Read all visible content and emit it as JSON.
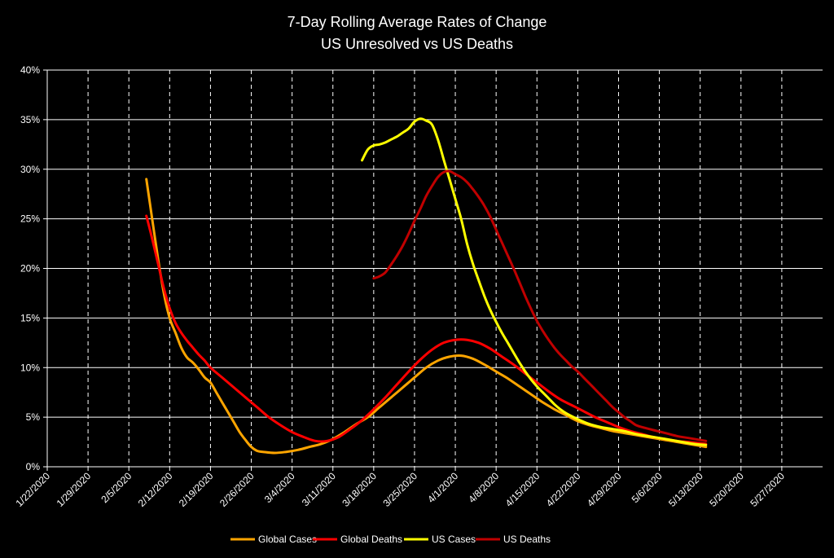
{
  "chart_data": {
    "type": "line",
    "title": "7-Day Rolling Average Rates of Change",
    "subtitle": "US Unresolved vs US Deaths",
    "xlabel": "",
    "ylabel": "",
    "x_ticks": [
      "1/22/2020",
      "1/29/2020",
      "2/5/2020",
      "2/12/2020",
      "2/19/2020",
      "2/26/2020",
      "3/4/2020",
      "3/11/2020",
      "3/18/2020",
      "3/25/2020",
      "4/1/2020",
      "4/8/2020",
      "4/15/2020",
      "4/22/2020",
      "4/29/2020",
      "5/6/2020",
      "5/13/2020",
      "5/20/2020",
      "5/27/2020"
    ],
    "y_ticks": [
      "0%",
      "5%",
      "10%",
      "15%",
      "20%",
      "25%",
      "30%",
      "35%",
      "40%"
    ],
    "ylim": [
      0,
      40
    ],
    "xlim": [
      "1/22/2020",
      "6/3/2020"
    ],
    "grid": {
      "horizontal": "solid",
      "vertical": "dashed"
    },
    "legend_position": "bottom",
    "background": "#000000",
    "series": [
      {
        "name": "Global Cases",
        "color": "#ffa500",
        "points": [
          [
            "2/8/2020",
            29.0
          ],
          [
            "2/9/2020",
            25.0
          ],
          [
            "2/10/2020",
            21.0
          ],
          [
            "2/11/2020",
            17.5
          ],
          [
            "2/12/2020",
            15.0
          ],
          [
            "2/13/2020",
            13.5
          ],
          [
            "2/14/2020",
            12.0
          ],
          [
            "2/15/2020",
            11.0
          ],
          [
            "2/16/2020",
            10.5
          ],
          [
            "2/17/2020",
            9.8
          ],
          [
            "2/18/2020",
            9.0
          ],
          [
            "2/19/2020",
            8.5
          ],
          [
            "2/20/2020",
            7.5
          ],
          [
            "2/21/2020",
            6.5
          ],
          [
            "2/22/2020",
            5.5
          ],
          [
            "2/23/2020",
            4.5
          ],
          [
            "2/24/2020",
            3.5
          ],
          [
            "2/25/2020",
            2.7
          ],
          [
            "2/26/2020",
            2.0
          ],
          [
            "2/27/2020",
            1.6
          ],
          [
            "2/28/2020",
            1.5
          ],
          [
            "3/1/2020",
            1.4
          ],
          [
            "3/3/2020",
            1.5
          ],
          [
            "3/5/2020",
            1.7
          ],
          [
            "3/7/2020",
            2.0
          ],
          [
            "3/9/2020",
            2.3
          ],
          [
            "3/11/2020",
            2.8
          ],
          [
            "3/13/2020",
            3.5
          ],
          [
            "3/15/2020",
            4.3
          ],
          [
            "3/17/2020",
            5.0
          ],
          [
            "3/19/2020",
            6.0
          ],
          [
            "3/21/2020",
            7.0
          ],
          [
            "3/23/2020",
            8.0
          ],
          [
            "3/25/2020",
            9.0
          ],
          [
            "3/27/2020",
            10.0
          ],
          [
            "3/29/2020",
            10.7
          ],
          [
            "3/31/2020",
            11.1
          ],
          [
            "4/2/2020",
            11.2
          ],
          [
            "4/4/2020",
            10.9
          ],
          [
            "4/6/2020",
            10.3
          ],
          [
            "4/8/2020",
            9.6
          ],
          [
            "4/10/2020",
            8.9
          ],
          [
            "4/12/2020",
            8.1
          ],
          [
            "4/14/2020",
            7.3
          ],
          [
            "4/16/2020",
            6.5
          ],
          [
            "4/18/2020",
            5.8
          ],
          [
            "4/20/2020",
            5.2
          ],
          [
            "4/22/2020",
            4.6
          ],
          [
            "4/24/2020",
            4.2
          ],
          [
            "4/26/2020",
            3.9
          ],
          [
            "4/28/2020",
            3.6
          ],
          [
            "4/30/2020",
            3.4
          ],
          [
            "5/2/2020",
            3.2
          ],
          [
            "5/4/2020",
            3.0
          ],
          [
            "5/6/2020",
            2.8
          ],
          [
            "5/8/2020",
            2.6
          ],
          [
            "5/10/2020",
            2.4
          ],
          [
            "5/12/2020",
            2.2
          ],
          [
            "5/14/2020",
            2.0
          ]
        ]
      },
      {
        "name": "Global Deaths",
        "color": "#ff0000",
        "points": [
          [
            "2/8/2020",
            25.3
          ],
          [
            "2/9/2020",
            23.0
          ],
          [
            "2/10/2020",
            20.5
          ],
          [
            "2/11/2020",
            18.0
          ],
          [
            "2/12/2020",
            16.0
          ],
          [
            "2/13/2020",
            14.5
          ],
          [
            "2/14/2020",
            13.5
          ],
          [
            "2/15/2020",
            12.7
          ],
          [
            "2/16/2020",
            12.0
          ],
          [
            "2/17/2020",
            11.3
          ],
          [
            "2/18/2020",
            10.7
          ],
          [
            "2/19/2020",
            10.0
          ],
          [
            "2/21/2020",
            9.0
          ],
          [
            "2/23/2020",
            8.0
          ],
          [
            "2/25/2020",
            7.0
          ],
          [
            "2/27/2020",
            6.0
          ],
          [
            "2/29/2020",
            5.0
          ],
          [
            "3/2/2020",
            4.2
          ],
          [
            "3/4/2020",
            3.5
          ],
          [
            "3/6/2020",
            3.0
          ],
          [
            "3/8/2020",
            2.6
          ],
          [
            "3/10/2020",
            2.6
          ],
          [
            "3/12/2020",
            3.0
          ],
          [
            "3/14/2020",
            3.8
          ],
          [
            "3/16/2020",
            4.7
          ],
          [
            "3/18/2020",
            5.8
          ],
          [
            "3/20/2020",
            7.0
          ],
          [
            "3/22/2020",
            8.3
          ],
          [
            "3/24/2020",
            9.6
          ],
          [
            "3/26/2020",
            10.8
          ],
          [
            "3/28/2020",
            11.8
          ],
          [
            "3/30/2020",
            12.5
          ],
          [
            "4/1/2020",
            12.8
          ],
          [
            "4/3/2020",
            12.8
          ],
          [
            "4/5/2020",
            12.5
          ],
          [
            "4/7/2020",
            11.9
          ],
          [
            "4/9/2020",
            11.1
          ],
          [
            "4/11/2020",
            10.3
          ],
          [
            "4/13/2020",
            9.4
          ],
          [
            "4/15/2020",
            8.5
          ],
          [
            "4/17/2020",
            7.6
          ],
          [
            "4/19/2020",
            6.8
          ],
          [
            "4/21/2020",
            6.2
          ],
          [
            "4/23/2020",
            5.6
          ],
          [
            "4/25/2020",
            5.0
          ],
          [
            "4/27/2020",
            4.5
          ],
          [
            "4/29/2020",
            4.0
          ],
          [
            "5/1/2020",
            3.6
          ],
          [
            "5/3/2020",
            3.3
          ],
          [
            "5/5/2020",
            3.0
          ],
          [
            "5/7/2020",
            2.8
          ],
          [
            "5/9/2020",
            2.6
          ],
          [
            "5/11/2020",
            2.5
          ],
          [
            "5/14/2020",
            2.3
          ]
        ]
      },
      {
        "name": "US Cases",
        "color": "#ffff00",
        "points": [
          [
            "3/16/2020",
            30.9
          ],
          [
            "3/17/2020",
            32.0
          ],
          [
            "3/18/2020",
            32.4
          ],
          [
            "3/19/2020",
            32.5
          ],
          [
            "3/20/2020",
            32.7
          ],
          [
            "3/21/2020",
            33.0
          ],
          [
            "3/22/2020",
            33.3
          ],
          [
            "3/23/2020",
            33.7
          ],
          [
            "3/24/2020",
            34.1
          ],
          [
            "3/25/2020",
            34.8
          ],
          [
            "3/26/2020",
            35.1
          ],
          [
            "3/27/2020",
            34.9
          ],
          [
            "3/28/2020",
            34.5
          ],
          [
            "3/29/2020",
            33.0
          ],
          [
            "3/30/2020",
            31.0
          ],
          [
            "3/31/2020",
            29.0
          ],
          [
            "4/1/2020",
            27.0
          ],
          [
            "4/2/2020",
            25.0
          ],
          [
            "4/3/2020",
            22.5
          ],
          [
            "4/4/2020",
            20.5
          ],
          [
            "4/5/2020",
            18.8
          ],
          [
            "4/6/2020",
            17.2
          ],
          [
            "4/7/2020",
            15.8
          ],
          [
            "4/8/2020",
            14.6
          ],
          [
            "4/9/2020",
            13.5
          ],
          [
            "4/10/2020",
            12.5
          ],
          [
            "4/11/2020",
            11.5
          ],
          [
            "4/12/2020",
            10.5
          ],
          [
            "4/13/2020",
            9.6
          ],
          [
            "4/14/2020",
            8.8
          ],
          [
            "4/15/2020",
            8.1
          ],
          [
            "4/16/2020",
            7.5
          ],
          [
            "4/17/2020",
            6.9
          ],
          [
            "4/18/2020",
            6.3
          ],
          [
            "4/19/2020",
            5.8
          ],
          [
            "4/20/2020",
            5.4
          ],
          [
            "4/22/2020",
            4.8
          ],
          [
            "4/24/2020",
            4.3
          ],
          [
            "4/26/2020",
            4.0
          ],
          [
            "4/28/2020",
            3.8
          ],
          [
            "4/30/2020",
            3.6
          ],
          [
            "5/2/2020",
            3.3
          ],
          [
            "5/4/2020",
            3.1
          ],
          [
            "5/6/2020",
            2.9
          ],
          [
            "5/8/2020",
            2.7
          ],
          [
            "5/10/2020",
            2.5
          ],
          [
            "5/12/2020",
            2.3
          ],
          [
            "5/14/2020",
            2.2
          ]
        ]
      },
      {
        "name": "US Deaths",
        "color": "#c00000",
        "points": [
          [
            "3/18/2020",
            19.0
          ],
          [
            "3/19/2020",
            19.2
          ],
          [
            "3/20/2020",
            19.6
          ],
          [
            "3/21/2020",
            20.4
          ],
          [
            "3/22/2020",
            21.3
          ],
          [
            "3/23/2020",
            22.3
          ],
          [
            "3/24/2020",
            23.5
          ],
          [
            "3/25/2020",
            24.8
          ],
          [
            "3/26/2020",
            26.0
          ],
          [
            "3/27/2020",
            27.3
          ],
          [
            "3/28/2020",
            28.3
          ],
          [
            "3/29/2020",
            29.2
          ],
          [
            "3/30/2020",
            29.7
          ],
          [
            "3/31/2020",
            29.8
          ],
          [
            "4/1/2020",
            29.5
          ],
          [
            "4/2/2020",
            29.2
          ],
          [
            "4/3/2020",
            28.7
          ],
          [
            "4/4/2020",
            28.0
          ],
          [
            "4/5/2020",
            27.2
          ],
          [
            "4/6/2020",
            26.3
          ],
          [
            "4/7/2020",
            25.2
          ],
          [
            "4/8/2020",
            23.9
          ],
          [
            "4/9/2020",
            22.6
          ],
          [
            "4/10/2020",
            21.3
          ],
          [
            "4/11/2020",
            20.0
          ],
          [
            "4/12/2020",
            18.6
          ],
          [
            "4/13/2020",
            17.2
          ],
          [
            "4/14/2020",
            15.9
          ],
          [
            "4/15/2020",
            14.7
          ],
          [
            "4/16/2020",
            13.7
          ],
          [
            "4/17/2020",
            12.8
          ],
          [
            "4/18/2020",
            12.0
          ],
          [
            "4/19/2020",
            11.3
          ],
          [
            "4/20/2020",
            10.7
          ],
          [
            "4/21/2020",
            10.1
          ],
          [
            "4/22/2020",
            9.6
          ],
          [
            "4/23/2020",
            9.0
          ],
          [
            "4/24/2020",
            8.4
          ],
          [
            "4/25/2020",
            7.8
          ],
          [
            "4/26/2020",
            7.2
          ],
          [
            "4/27/2020",
            6.6
          ],
          [
            "4/28/2020",
            6.0
          ],
          [
            "4/29/2020",
            5.5
          ],
          [
            "4/30/2020",
            5.0
          ],
          [
            "5/1/2020",
            4.6
          ],
          [
            "5/2/2020",
            4.2
          ],
          [
            "5/3/2020",
            4.0
          ],
          [
            "5/5/2020",
            3.7
          ],
          [
            "5/7/2020",
            3.4
          ],
          [
            "5/9/2020",
            3.1
          ],
          [
            "5/11/2020",
            2.9
          ],
          [
            "5/14/2020",
            2.6
          ]
        ]
      }
    ]
  }
}
